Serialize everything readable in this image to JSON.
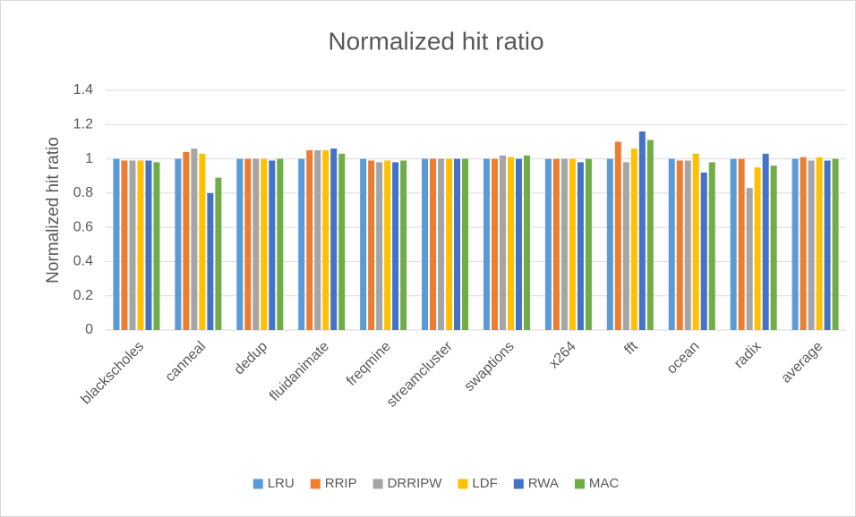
{
  "chart_data": {
    "type": "bar",
    "title": "Normalized hit ratio",
    "y_label": "Normalized hit ratio",
    "categories": [
      "blackscholes",
      "canneal",
      "dedup",
      "fluidanimate",
      "freqmine",
      "streamcluster",
      "swaptions",
      "x264",
      "fft",
      "ocean",
      "radix",
      "average"
    ],
    "series": [
      {
        "name": "LRU",
        "color": "#5b9bd5",
        "values": [
          1,
          1,
          1,
          1,
          1,
          1,
          1,
          1,
          1,
          1,
          1,
          1
        ]
      },
      {
        "name": "RRIP",
        "color": "#ed7d31",
        "values": [
          0.99,
          1.04,
          1,
          1.05,
          0.99,
          1,
          1,
          1,
          1.1,
          0.99,
          1,
          1.01
        ]
      },
      {
        "name": "DRRIPW",
        "color": "#a5a5a5",
        "values": [
          0.99,
          1.06,
          1,
          1.05,
          0.98,
          1,
          1.02,
          1,
          0.98,
          0.99,
          0.83,
          0.99
        ]
      },
      {
        "name": "LDF",
        "color": "#ffc000",
        "values": [
          0.99,
          1.03,
          1,
          1.05,
          0.99,
          1,
          1.01,
          1,
          1.06,
          1.03,
          0.95,
          1.01
        ]
      },
      {
        "name": "RWA",
        "color": "#4472c4",
        "values": [
          0.99,
          0.8,
          0.99,
          1.06,
          0.98,
          1,
          1,
          0.98,
          1.16,
          0.92,
          1.03,
          0.99
        ]
      },
      {
        "name": "MAC",
        "color": "#70ad47",
        "values": [
          0.98,
          0.89,
          1,
          1.03,
          0.99,
          1,
          1.02,
          1,
          1.11,
          0.98,
          0.96,
          1
        ]
      }
    ],
    "ylim": [
      0,
      1.4
    ],
    "yticks": [
      0,
      0.2,
      0.4,
      0.6,
      0.8,
      1,
      1.2,
      1.4
    ],
    "grid": true,
    "legend": "bottom"
  }
}
